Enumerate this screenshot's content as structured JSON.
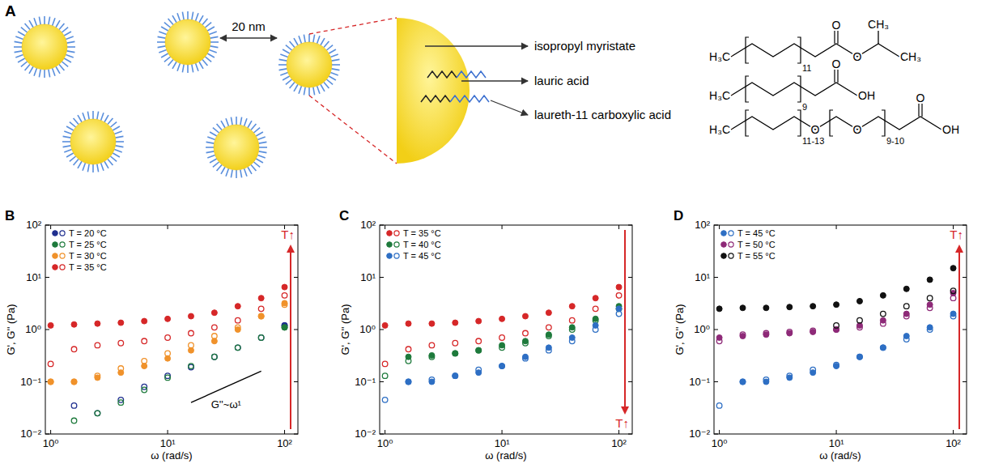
{
  "panel_a": {
    "letter": "A",
    "scale_bar": "20 nm",
    "components": [
      {
        "label": "isopropyl myristate",
        "structure_texts": [
          "H₃C",
          "11",
          "O",
          "O",
          "CH₃",
          "CH₃"
        ]
      },
      {
        "label": "lauric acid",
        "structure_texts": [
          "H₃C",
          "9",
          "O",
          "OH"
        ]
      },
      {
        "label": "laureth-11 carboxylic acid",
        "structure_texts": [
          "H₃C",
          "11-13",
          "O",
          "O",
          "9-10",
          "O",
          "OH"
        ]
      }
    ]
  },
  "chart_data": [
    {
      "type": "scatter",
      "panel": "B",
      "x_label": "ω (rad/s)",
      "y_label": "G', G'' (Pa)",
      "log": true,
      "grid": false,
      "legend": "upper left",
      "xlim": [
        0.9,
        130
      ],
      "ylim": [
        0.01,
        100
      ],
      "xticks": [
        {
          "value": 1,
          "label": "10⁰"
        },
        {
          "value": 10,
          "label": "10¹"
        },
        {
          "value": 100,
          "label": "10²"
        }
      ],
      "yticks": [
        {
          "value": 0.01,
          "label": "10⁻²"
        },
        {
          "value": 0.1,
          "label": "10⁻¹"
        },
        {
          "value": 1,
          "label": "10⁰"
        },
        {
          "value": 10,
          "label": "10¹"
        },
        {
          "value": 100,
          "label": "10²"
        }
      ],
      "x": [
        1,
        1.585,
        2.512,
        3.981,
        6.31,
        10,
        15.85,
        25.12,
        39.81,
        63.1,
        100
      ],
      "series": [
        {
          "name": "T = 20 °C",
          "color": "#1f2f8f",
          "values": [
            null,
            null,
            null,
            null,
            null,
            null,
            null,
            null,
            null,
            null,
            1.2
          ],
          "loss_values": [
            null,
            0.035,
            0.025,
            0.045,
            0.08,
            0.13,
            0.19,
            0.3,
            0.45,
            0.7,
            1.2
          ]
        },
        {
          "name": "T = 25 °C",
          "color": "#1e7a3c",
          "values": [
            null,
            null,
            null,
            null,
            null,
            null,
            null,
            null,
            null,
            null,
            1.1
          ],
          "loss_values": [
            null,
            0.018,
            0.025,
            0.04,
            0.07,
            0.12,
            0.2,
            0.3,
            0.45,
            0.7,
            1.1
          ]
        },
        {
          "name": "T = 30 °C",
          "color": "#f0922b",
          "values": [
            0.1,
            0.1,
            0.12,
            0.15,
            0.2,
            0.28,
            0.4,
            0.6,
            1.0,
            1.8,
            3.2
          ],
          "loss_values": [
            0.1,
            0.1,
            0.13,
            0.18,
            0.25,
            0.35,
            0.5,
            0.75,
            1.1,
            1.8,
            3.0
          ]
        },
        {
          "name": "T = 35 °C",
          "color": "#d62728",
          "values": [
            1.2,
            1.25,
            1.3,
            1.35,
            1.45,
            1.6,
            1.8,
            2.1,
            2.8,
            4.0,
            6.5
          ],
          "loss_values": [
            0.22,
            0.42,
            0.5,
            0.55,
            0.6,
            0.7,
            0.85,
            1.1,
            1.5,
            2.5,
            4.5
          ]
        }
      ],
      "annotations": [
        {
          "text": "T↑",
          "direction": "up"
        },
        {
          "text": "G''~ω¹",
          "x": [
            15.85,
            63.1
          ],
          "y": [
            0.04,
            0.16
          ]
        }
      ]
    },
    {
      "type": "scatter",
      "panel": "C",
      "x_label": "ω (rad/s)",
      "y_label": "G', G'' (Pa)",
      "log": true,
      "grid": false,
      "legend": "upper left",
      "xlim": [
        0.9,
        130
      ],
      "ylim": [
        0.01,
        100
      ],
      "xticks": [
        {
          "value": 1,
          "label": "10⁰"
        },
        {
          "value": 10,
          "label": "10¹"
        },
        {
          "value": 100,
          "label": "10²"
        }
      ],
      "yticks": [
        {
          "value": 0.01,
          "label": "10⁻²"
        },
        {
          "value": 0.1,
          "label": "10⁻¹"
        },
        {
          "value": 1,
          "label": "10⁰"
        },
        {
          "value": 10,
          "label": "10¹"
        },
        {
          "value": 100,
          "label": "10²"
        }
      ],
      "x": [
        1,
        1.585,
        2.512,
        3.981,
        6.31,
        10,
        15.85,
        25.12,
        39.81,
        63.1,
        100
      ],
      "series": [
        {
          "name": "T = 35 °C",
          "color": "#d62728",
          "values": [
            1.2,
            1.3,
            1.3,
            1.35,
            1.45,
            1.6,
            1.8,
            2.1,
            2.8,
            4.0,
            6.5
          ],
          "loss_values": [
            0.22,
            0.42,
            0.5,
            0.55,
            0.6,
            0.7,
            0.85,
            1.1,
            1.5,
            2.5,
            4.5
          ]
        },
        {
          "name": "T = 40 °C",
          "color": "#1e7a3c",
          "values": [
            null,
            0.3,
            0.32,
            0.35,
            0.4,
            0.5,
            0.6,
            0.8,
            1.1,
            1.6,
            2.8
          ],
          "loss_values": [
            0.13,
            0.25,
            0.3,
            0.35,
            0.4,
            0.45,
            0.55,
            0.75,
            1.0,
            1.5,
            2.5
          ]
        },
        {
          "name": "T = 45 °C",
          "color": "#2e6fc4",
          "values": [
            null,
            0.1,
            0.1,
            0.13,
            0.15,
            0.2,
            0.3,
            0.45,
            0.7,
            1.2,
            2.5
          ],
          "loss_values": [
            0.045,
            0.1,
            0.11,
            0.13,
            0.17,
            0.2,
            0.28,
            0.4,
            0.6,
            1.0,
            2.0
          ]
        }
      ],
      "annotations": [
        {
          "text": "T↑",
          "direction": "down"
        }
      ]
    },
    {
      "type": "scatter",
      "panel": "D",
      "x_label": "ω (rad/s)",
      "y_label": "G', G'' (Pa)",
      "log": true,
      "grid": false,
      "legend": "upper left",
      "xlim": [
        0.9,
        130
      ],
      "ylim": [
        0.01,
        100
      ],
      "xticks": [
        {
          "value": 1,
          "label": "10⁰"
        },
        {
          "value": 10,
          "label": "10¹"
        },
        {
          "value": 100,
          "label": "10²"
        }
      ],
      "yticks": [
        {
          "value": 0.01,
          "label": "10⁻²"
        },
        {
          "value": 0.1,
          "label": "10⁻¹"
        },
        {
          "value": 1,
          "label": "10⁰"
        },
        {
          "value": 10,
          "label": "10¹"
        },
        {
          "value": 100,
          "label": "10²"
        }
      ],
      "x": [
        1,
        1.585,
        2.512,
        3.981,
        6.31,
        10,
        15.85,
        25.12,
        39.81,
        63.1,
        100
      ],
      "series": [
        {
          "name": "T = 45 °C",
          "color": "#2e6fc4",
          "values": [
            null,
            0.1,
            0.1,
            0.12,
            0.15,
            0.2,
            0.3,
            0.45,
            0.75,
            1.1,
            2.0
          ],
          "loss_values": [
            0.035,
            0.1,
            0.11,
            0.13,
            0.17,
            0.21,
            0.3,
            0.45,
            0.65,
            1.0,
            1.8
          ]
        },
        {
          "name": "T = 50 °C",
          "color": "#8e2a78",
          "values": [
            0.7,
            0.75,
            0.8,
            0.85,
            0.9,
            1.0,
            1.2,
            1.5,
            2.0,
            3.0,
            5.0
          ],
          "loss_values": [
            0.6,
            0.8,
            0.85,
            0.9,
            0.95,
            1.0,
            1.1,
            1.3,
            1.8,
            2.6,
            4.0
          ]
        },
        {
          "name": "T = 55 °C",
          "color": "#111111",
          "values": [
            2.5,
            2.6,
            2.6,
            2.7,
            2.8,
            3.0,
            3.5,
            4.5,
            6.0,
            9.0,
            15.0
          ],
          "loss_values": [
            null,
            null,
            null,
            null,
            null,
            1.2,
            1.5,
            2.0,
            2.8,
            4.0,
            5.5
          ]
        }
      ],
      "annotations": [
        {
          "text": "T↑",
          "direction": "up"
        }
      ]
    }
  ]
}
